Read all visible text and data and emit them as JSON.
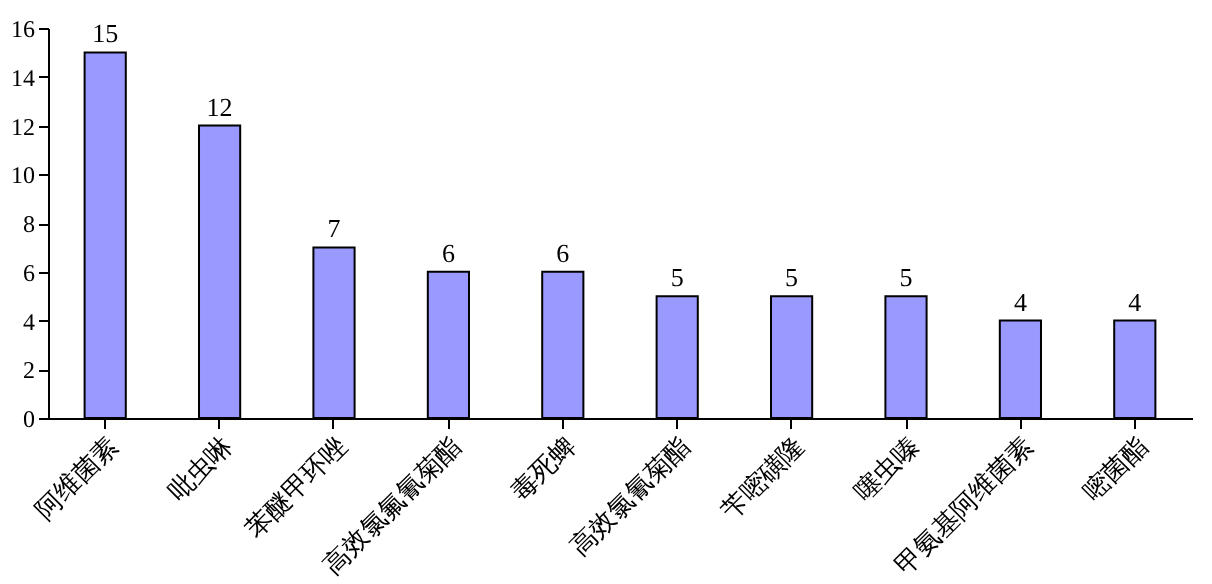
{
  "chart_data": {
    "type": "bar",
    "categories": [
      "阿维菌素",
      "吡虫啉",
      "苯醚甲环唑",
      "高效氯氟氰菊酯",
      "毒死蜱",
      "高效氯氰菊酯",
      "苄嘧磺隆",
      "噻虫嗪",
      "甲氨基阿维菌素",
      "嘧菌酯"
    ],
    "values": [
      15,
      12,
      7,
      6,
      6,
      5,
      5,
      5,
      4,
      4
    ],
    "color": "#9999ff",
    "ylim": [
      0,
      16
    ],
    "yticks": [
      0,
      2,
      4,
      6,
      8,
      10,
      12,
      14,
      16
    ],
    "data_labels": true,
    "grid": false
  }
}
